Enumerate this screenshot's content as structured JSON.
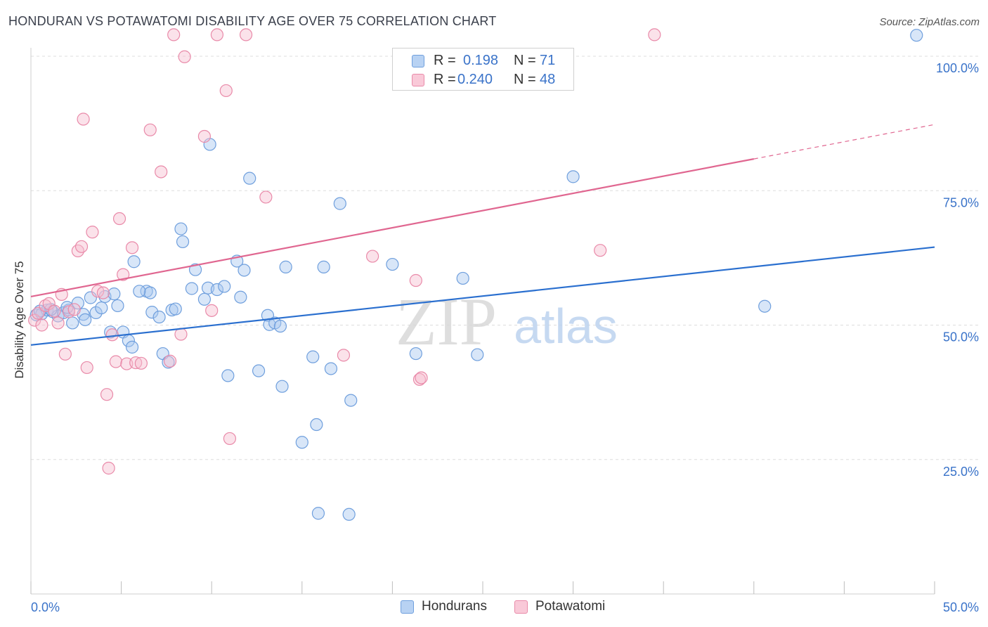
{
  "title": "HONDURAN VS POTAWATOMI DISABILITY AGE OVER 75 CORRELATION CHART",
  "source": "Source: ZipAtlas.com",
  "watermark": {
    "zip": "ZIP",
    "atlas": "atlas"
  },
  "legend_top": {
    "rows": [
      {
        "r_label": "R =",
        "r_value": "0.198",
        "n_label": "N =",
        "n_value": "71"
      },
      {
        "r_label": "R =",
        "r_value": "0.240",
        "n_label": "N =",
        "n_value": "48"
      }
    ]
  },
  "legend_bottom": {
    "items": [
      "Hondurans",
      "Potawatomi"
    ]
  },
  "colors": {
    "blue_fill": "#a9c8f0",
    "blue_stroke": "#6f9fdd",
    "blue_line": "#2a6fcf",
    "pink_fill": "#f7bfd0",
    "pink_stroke": "#e98aa9",
    "pink_line": "#e06690",
    "axis_text": "#3a73c9",
    "grid": "#dddddd"
  },
  "chart_data": {
    "type": "scatter",
    "title": "HONDURAN VS POTAWATOMI DISABILITY AGE OVER 75 CORRELATION CHART",
    "xlabel": "",
    "ylabel": "Disability Age Over 75",
    "xlim": [
      0,
      50
    ],
    "ylim": [
      0,
      105
    ],
    "x_ticks": [
      {
        "value": 0,
        "label": "0.0%"
      },
      {
        "value": 50,
        "label": "50.0%"
      }
    ],
    "y_ticks": [
      {
        "value": 25,
        "label": "25.0%"
      },
      {
        "value": 50,
        "label": "50.0%"
      },
      {
        "value": 75,
        "label": "75.0%"
      },
      {
        "value": 100,
        "label": "100.0%"
      }
    ],
    "series": [
      {
        "name": "Hondurans",
        "R": 0.198,
        "N": 71,
        "trend": {
          "x": [
            0,
            50
          ],
          "y": [
            46.3,
            64.5
          ],
          "dashed_from_x": null
        },
        "points": [
          [
            0.3,
            51.9
          ],
          [
            0.6,
            52.1
          ],
          [
            0.9,
            52.8
          ],
          [
            1.2,
            52.5
          ],
          [
            1.5,
            51.7
          ],
          [
            1.8,
            52.3
          ],
          [
            2.1,
            52.8
          ],
          [
            2.3,
            50.4
          ],
          [
            2.9,
            52.0
          ],
          [
            2.6,
            54.1
          ],
          [
            3.0,
            51.0
          ],
          [
            3.3,
            55.1
          ],
          [
            3.6,
            52.3
          ],
          [
            3.9,
            53.2
          ],
          [
            4.1,
            55.3
          ],
          [
            4.4,
            48.7
          ],
          [
            4.6,
            55.8
          ],
          [
            4.8,
            53.6
          ],
          [
            5.1,
            48.7
          ],
          [
            5.4,
            47.1
          ],
          [
            5.6,
            45.9
          ],
          [
            5.7,
            61.8
          ],
          [
            6.4,
            56.3
          ],
          [
            6.6,
            56.0
          ],
          [
            6.7,
            52.4
          ],
          [
            7.1,
            51.5
          ],
          [
            7.3,
            44.7
          ],
          [
            7.6,
            43.1
          ],
          [
            7.8,
            52.8
          ],
          [
            8.3,
            67.9
          ],
          [
            8.4,
            65.5
          ],
          [
            8.9,
            56.8
          ],
          [
            9.1,
            60.3
          ],
          [
            9.6,
            54.8
          ],
          [
            9.8,
            56.9
          ],
          [
            9.9,
            83.6
          ],
          [
            10.3,
            56.6
          ],
          [
            10.7,
            57.2
          ],
          [
            10.9,
            40.6
          ],
          [
            11.4,
            61.9
          ],
          [
            11.6,
            55.2
          ],
          [
            11.8,
            60.2
          ],
          [
            12.1,
            77.3
          ],
          [
            12.6,
            41.5
          ],
          [
            13.1,
            51.8
          ],
          [
            13.2,
            50.1
          ],
          [
            13.5,
            50.4
          ],
          [
            13.8,
            49.8
          ],
          [
            13.9,
            38.6
          ],
          [
            14.1,
            60.8
          ],
          [
            15.0,
            28.2
          ],
          [
            15.6,
            44.1
          ],
          [
            15.8,
            31.5
          ],
          [
            15.9,
            15.0
          ],
          [
            16.2,
            60.8
          ],
          [
            16.6,
            41.9
          ],
          [
            17.1,
            72.6
          ],
          [
            17.6,
            14.8
          ],
          [
            17.7,
            36.0
          ],
          [
            20.0,
            61.3
          ],
          [
            21.3,
            44.7
          ],
          [
            23.9,
            58.7
          ],
          [
            24.7,
            44.5
          ],
          [
            30.0,
            77.6
          ],
          [
            40.6,
            53.5
          ],
          [
            49.0,
            103.9
          ],
          [
            0.5,
            52.6
          ],
          [
            1.1,
            52.9
          ],
          [
            2.0,
            53.3
          ],
          [
            6.0,
            56.3
          ],
          [
            8.0,
            53.0
          ]
        ]
      },
      {
        "name": "Potawatomi",
        "R": 0.24,
        "N": 48,
        "trend": {
          "x": [
            0,
            50
          ],
          "y": [
            55.3,
            87.3
          ],
          "dashed_from_x": 40.0
        },
        "points": [
          [
            0.2,
            50.9
          ],
          [
            0.4,
            52.2
          ],
          [
            0.6,
            50.0
          ],
          [
            0.8,
            53.6
          ],
          [
            1.0,
            54.0
          ],
          [
            1.3,
            52.6
          ],
          [
            1.5,
            50.4
          ],
          [
            1.7,
            55.7
          ],
          [
            1.9,
            44.6
          ],
          [
            2.1,
            52.5
          ],
          [
            2.4,
            52.9
          ],
          [
            2.6,
            63.8
          ],
          [
            2.8,
            64.6
          ],
          [
            2.9,
            88.3
          ],
          [
            3.1,
            42.1
          ],
          [
            3.4,
            67.3
          ],
          [
            3.7,
            56.3
          ],
          [
            4.0,
            56.0
          ],
          [
            4.2,
            37.1
          ],
          [
            4.3,
            23.4
          ],
          [
            4.5,
            48.2
          ],
          [
            4.7,
            43.2
          ],
          [
            4.9,
            69.8
          ],
          [
            5.1,
            59.4
          ],
          [
            5.3,
            42.8
          ],
          [
            5.6,
            64.4
          ],
          [
            5.8,
            43.0
          ],
          [
            6.1,
            42.9
          ],
          [
            6.6,
            86.3
          ],
          [
            7.2,
            78.5
          ],
          [
            7.7,
            43.3
          ],
          [
            7.9,
            104.0
          ],
          [
            8.3,
            48.3
          ],
          [
            8.5,
            99.9
          ],
          [
            9.6,
            85.1
          ],
          [
            10.0,
            52.7
          ],
          [
            10.3,
            104.0
          ],
          [
            10.8,
            93.6
          ],
          [
            11.0,
            28.9
          ],
          [
            11.9,
            104.0
          ],
          [
            13.0,
            73.8
          ],
          [
            17.3,
            44.4
          ],
          [
            18.9,
            62.8
          ],
          [
            21.3,
            58.3
          ],
          [
            21.5,
            39.9
          ],
          [
            21.6,
            40.2
          ],
          [
            31.5,
            63.9
          ],
          [
            34.5,
            104.0
          ]
        ]
      }
    ]
  }
}
